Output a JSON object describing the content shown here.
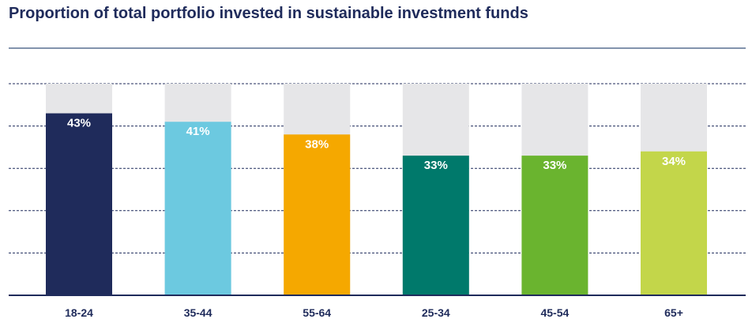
{
  "chart_data": {
    "type": "bar",
    "title": "Proportion of total portfolio invested in sustainable investment funds",
    "categories": [
      "18-24",
      "35-44",
      "55-64",
      "25-34",
      "45-54",
      "65+"
    ],
    "values": [
      43,
      41,
      38,
      33,
      33,
      34
    ],
    "value_labels": [
      "43%",
      "41%",
      "38%",
      "33%",
      "33%",
      "34%"
    ],
    "ylim": [
      0,
      50
    ],
    "grid": true,
    "background_bars": true,
    "colors": {
      "bars": [
        "#1f2b5b",
        "#6cc9e0",
        "#f5a800",
        "#00796b",
        "#6ab42f",
        "#c3d64a"
      ],
      "background_bar": "#e6e6e8",
      "title": "#1f2b5b",
      "title_rule": "#8293ad",
      "grid": "#1f2b5b",
      "axis": "#1f2b5b",
      "value_label": "#ffffff",
      "tick_label": "#1f2b5b"
    }
  }
}
